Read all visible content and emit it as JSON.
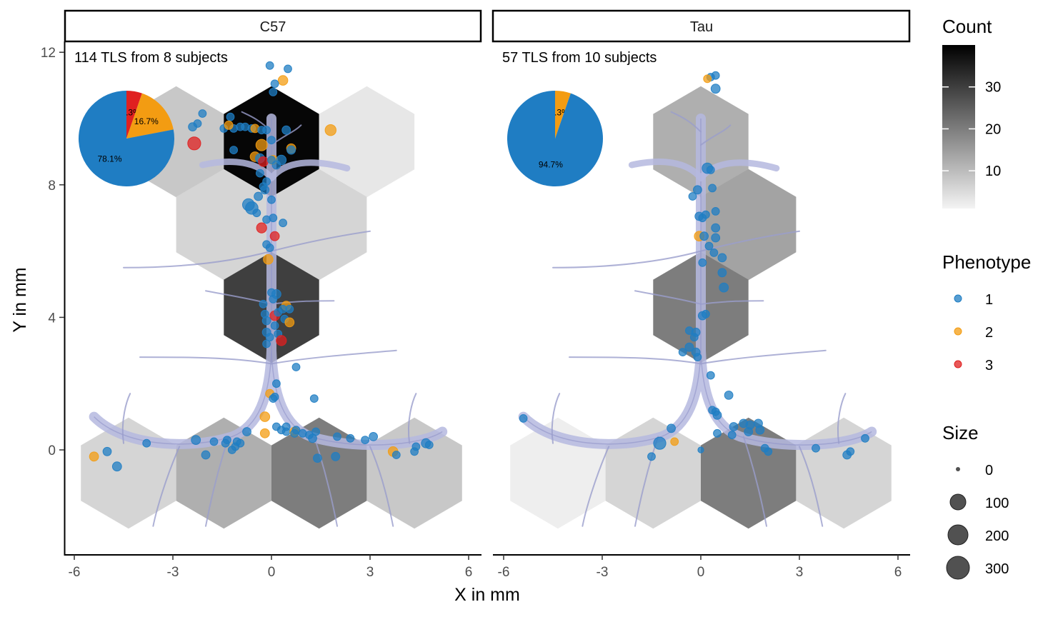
{
  "chart_data": {
    "type": "scatter",
    "xlabel": "X in mm",
    "ylabel": "Y in mm",
    "xlim": [
      -6.3,
      6.3
    ],
    "ylim": [
      -3.2,
      12.4
    ],
    "x_ticks": [
      -6,
      -3,
      0,
      3,
      6
    ],
    "x_tick_labels": [
      "-6",
      "-3",
      "0",
      "3",
      "6"
    ],
    "y_ticks": [
      0,
      4,
      8,
      12
    ],
    "y_tick_labels": [
      "0",
      "4",
      "8",
      "12"
    ],
    "grid": false,
    "panels": [
      {
        "label": "C57",
        "annotation": "114 TLS from 8 subjects",
        "hex_counts": [
          {
            "cx": -2.9,
            "cy": 9.3,
            "count": 8
          },
          {
            "cx": 0.0,
            "cy": 9.3,
            "count": 39
          },
          {
            "cx": 2.9,
            "cy": 9.3,
            "count": 3
          },
          {
            "cx": -1.45,
            "cy": 6.8,
            "count": 6
          },
          {
            "cx": 1.45,
            "cy": 6.8,
            "count": 6
          },
          {
            "cx": 0.0,
            "cy": 4.3,
            "count": 30
          },
          {
            "cx": -4.35,
            "cy": -0.7,
            "count": 6
          },
          {
            "cx": -1.45,
            "cy": -0.7,
            "count": 12
          },
          {
            "cx": 1.45,
            "cy": -0.7,
            "count": 20
          },
          {
            "cx": 4.35,
            "cy": -0.7,
            "count": 8
          }
        ],
        "pie": {
          "slices": [
            {
              "phenotype": "1",
              "pct": 78.1,
              "label": "78.1%"
            },
            {
              "phenotype": "2",
              "pct": 16.7,
              "label": "16.7%"
            },
            {
              "phenotype": "3",
              "pct": 5.3,
              "label": "5.3%"
            }
          ]
        },
        "points": [
          [
            -0.05,
            11.6,
            1,
            10
          ],
          [
            0.5,
            11.5,
            1,
            10
          ],
          [
            0.35,
            11.15,
            2,
            25
          ],
          [
            0.1,
            11.05,
            1,
            10
          ],
          [
            0.05,
            10.8,
            1,
            10
          ],
          [
            -2.1,
            10.15,
            1,
            10
          ],
          [
            -2.25,
            9.85,
            1,
            10
          ],
          [
            -2.4,
            9.75,
            1,
            15
          ],
          [
            -1.25,
            10.05,
            1,
            10
          ],
          [
            -1.45,
            9.7,
            1,
            10
          ],
          [
            -1.15,
            9.7,
            1,
            10
          ],
          [
            -1.3,
            9.8,
            2,
            15
          ],
          [
            -0.8,
            9.75,
            1,
            10
          ],
          [
            -0.6,
            9.7,
            1,
            10
          ],
          [
            -0.5,
            9.7,
            2,
            15
          ],
          [
            -0.95,
            9.75,
            1,
            10
          ],
          [
            -0.3,
            9.65,
            1,
            10
          ],
          [
            0.45,
            9.65,
            1,
            15
          ],
          [
            1.8,
            9.65,
            2,
            40
          ],
          [
            -2.35,
            9.25,
            3,
            65
          ],
          [
            -1.15,
            9.05,
            1,
            10
          ],
          [
            -0.3,
            9.2,
            2,
            45
          ],
          [
            -0.5,
            8.85,
            2,
            25
          ],
          [
            -0.35,
            8.8,
            1,
            20
          ],
          [
            -0.25,
            8.7,
            3,
            25
          ],
          [
            0.05,
            8.75,
            2,
            20
          ],
          [
            0.3,
            8.75,
            1,
            25
          ],
          [
            0.6,
            9.1,
            2,
            20
          ],
          [
            0.6,
            9.05,
            1,
            15
          ],
          [
            0.0,
            8.75,
            1,
            10
          ],
          [
            0.15,
            8.6,
            1,
            15
          ],
          [
            -0.35,
            8.35,
            1,
            10
          ],
          [
            -0.15,
            8.1,
            1,
            10
          ],
          [
            -0.2,
            7.85,
            1,
            15
          ],
          [
            -0.4,
            7.65,
            1,
            15
          ],
          [
            0.0,
            7.55,
            1,
            10
          ],
          [
            -0.7,
            7.4,
            1,
            50
          ],
          [
            -0.6,
            7.3,
            1,
            60
          ],
          [
            -0.45,
            7.15,
            1,
            10
          ],
          [
            0.05,
            7.0,
            1,
            10
          ],
          [
            -0.15,
            6.95,
            1,
            10
          ],
          [
            -0.3,
            6.7,
            3,
            30
          ],
          [
            0.1,
            6.45,
            3,
            20
          ],
          [
            -0.15,
            6.2,
            1,
            10
          ],
          [
            -0.05,
            6.1,
            1,
            10
          ],
          [
            -0.1,
            5.75,
            2,
            25
          ],
          [
            0.0,
            4.75,
            1,
            10
          ],
          [
            0.15,
            4.7,
            1,
            20
          ],
          [
            0.05,
            4.55,
            1,
            10
          ],
          [
            -0.25,
            4.4,
            1,
            10
          ],
          [
            0.45,
            4.35,
            2,
            20
          ],
          [
            0.55,
            4.25,
            1,
            10
          ],
          [
            0.35,
            4.25,
            1,
            10
          ],
          [
            0.1,
            4.05,
            3,
            25
          ],
          [
            0.2,
            4.15,
            1,
            10
          ],
          [
            -0.2,
            4.1,
            1,
            10
          ],
          [
            0.4,
            3.95,
            1,
            10
          ],
          [
            0.55,
            3.85,
            2,
            20
          ],
          [
            -0.15,
            3.9,
            1,
            15
          ],
          [
            0.1,
            3.75,
            1,
            10
          ],
          [
            0.2,
            3.5,
            1,
            10
          ],
          [
            -0.15,
            3.55,
            1,
            15
          ],
          [
            0.3,
            3.3,
            3,
            30
          ],
          [
            -0.15,
            3.2,
            1,
            10
          ],
          [
            0.75,
            2.5,
            1,
            10
          ],
          [
            0.15,
            2.0,
            1,
            10
          ],
          [
            -0.05,
            1.7,
            2,
            15
          ],
          [
            0.05,
            1.55,
            1,
            10
          ],
          [
            1.3,
            1.55,
            1,
            10
          ],
          [
            -0.2,
            1.0,
            2,
            25
          ],
          [
            -0.75,
            0.55,
            1,
            15
          ],
          [
            -0.2,
            0.5,
            2,
            20
          ],
          [
            0.15,
            0.7,
            1,
            10
          ],
          [
            0.3,
            0.6,
            1,
            10
          ],
          [
            0.45,
            0.55,
            1,
            10
          ],
          [
            0.7,
            0.55,
            2,
            20
          ],
          [
            0.75,
            0.6,
            1,
            10
          ],
          [
            0.95,
            0.5,
            1,
            10
          ],
          [
            1.15,
            0.45,
            1,
            10
          ],
          [
            1.35,
            0.55,
            1,
            10
          ],
          [
            1.25,
            0.35,
            1,
            15
          ],
          [
            2.0,
            0.4,
            1,
            10
          ],
          [
            2.4,
            0.35,
            1,
            10
          ],
          [
            3.1,
            0.4,
            1,
            15
          ],
          [
            2.85,
            0.3,
            1,
            10
          ],
          [
            -2.3,
            0.3,
            1,
            20
          ],
          [
            -1.75,
            0.25,
            1,
            10
          ],
          [
            -1.35,
            0.3,
            1,
            10
          ],
          [
            -1.4,
            0.2,
            1,
            10
          ],
          [
            -1.05,
            0.25,
            1,
            10
          ],
          [
            -1.1,
            0.1,
            1,
            10
          ],
          [
            -1.2,
            0.0,
            1,
            10
          ],
          [
            -0.95,
            0.2,
            1,
            10
          ],
          [
            -3.8,
            0.2,
            1,
            10
          ],
          [
            -2.0,
            -0.15,
            1,
            15
          ],
          [
            -5.0,
            -0.05,
            1,
            15
          ],
          [
            -5.4,
            -0.2,
            2,
            20
          ],
          [
            -4.7,
            -0.5,
            1,
            20
          ],
          [
            1.4,
            -0.25,
            1,
            15
          ],
          [
            1.95,
            -0.2,
            1,
            15
          ],
          [
            3.7,
            -0.05,
            2,
            25
          ],
          [
            3.8,
            -0.15,
            1,
            10
          ],
          [
            4.4,
            0.1,
            1,
            10
          ],
          [
            4.35,
            -0.05,
            1,
            10
          ],
          [
            4.7,
            0.2,
            1,
            20
          ],
          [
            4.8,
            0.15,
            1,
            10
          ],
          [
            0.7,
            0.5,
            1,
            10
          ],
          [
            0.45,
            0.7,
            1,
            10
          ],
          [
            0.1,
            1.6,
            1,
            10
          ],
          [
            -0.05,
            3.4,
            1,
            10
          ],
          [
            0.35,
            6.85,
            1,
            10
          ],
          [
            -0.25,
            7.95,
            1,
            10
          ],
          [
            0.0,
            9.35,
            1,
            10
          ],
          [
            -0.15,
            9.65,
            1,
            10
          ]
        ]
      },
      {
        "label": "Tau",
        "annotation": "57 TLS from 10 subjects",
        "hex_counts": [
          {
            "cx": 0.0,
            "cy": 9.3,
            "count": 12
          },
          {
            "cx": 1.45,
            "cy": 6.8,
            "count": 14
          },
          {
            "cx": 0.0,
            "cy": 4.3,
            "count": 20
          },
          {
            "cx": -4.35,
            "cy": -0.7,
            "count": 2
          },
          {
            "cx": -1.45,
            "cy": -0.7,
            "count": 6
          },
          {
            "cx": 1.45,
            "cy": -0.7,
            "count": 20
          },
          {
            "cx": 4.35,
            "cy": -0.7,
            "count": 6
          }
        ],
        "pie": {
          "slices": [
            {
              "phenotype": "1",
              "pct": 94.7,
              "label": "94.7%"
            },
            {
              "phenotype": "2",
              "pct": 5.3,
              "label": "5.3%"
            }
          ]
        },
        "points": [
          [
            0.45,
            11.3,
            1,
            10
          ],
          [
            0.3,
            11.25,
            1,
            10
          ],
          [
            0.2,
            11.2,
            2,
            10
          ],
          [
            0.45,
            10.9,
            1,
            20
          ],
          [
            0.2,
            8.5,
            1,
            35
          ],
          [
            -0.1,
            7.85,
            1,
            15
          ],
          [
            0.35,
            7.9,
            1,
            10
          ],
          [
            -0.25,
            7.65,
            1,
            10
          ],
          [
            -0.05,
            7.05,
            1,
            15
          ],
          [
            0.15,
            7.1,
            1,
            10
          ],
          [
            0.45,
            7.2,
            1,
            10
          ],
          [
            0.05,
            7.0,
            1,
            10
          ],
          [
            0.45,
            6.7,
            1,
            15
          ],
          [
            -0.05,
            6.45,
            2,
            25
          ],
          [
            0.1,
            6.45,
            1,
            15
          ],
          [
            0.45,
            6.4,
            1,
            15
          ],
          [
            0.25,
            6.15,
            1,
            10
          ],
          [
            0.4,
            5.95,
            1,
            10
          ],
          [
            0.05,
            5.65,
            1,
            10
          ],
          [
            0.65,
            5.8,
            1,
            15
          ],
          [
            0.65,
            5.35,
            1,
            15
          ],
          [
            0.7,
            4.9,
            1,
            20
          ],
          [
            0.05,
            4.05,
            1,
            15
          ],
          [
            -0.35,
            3.6,
            1,
            10
          ],
          [
            -0.15,
            3.55,
            1,
            15
          ],
          [
            -0.35,
            3.1,
            1,
            15
          ],
          [
            -0.55,
            2.95,
            1,
            10
          ],
          [
            -0.15,
            2.95,
            1,
            15
          ],
          [
            -0.1,
            2.8,
            1,
            10
          ],
          [
            0.3,
            2.25,
            1,
            10
          ],
          [
            0.85,
            1.65,
            1,
            15
          ],
          [
            0.35,
            1.2,
            1,
            10
          ],
          [
            0.45,
            1.15,
            1,
            10
          ],
          [
            0.5,
            1.05,
            1,
            15
          ],
          [
            -5.4,
            0.95,
            1,
            10
          ],
          [
            -0.9,
            0.65,
            1,
            15
          ],
          [
            1.0,
            0.7,
            1,
            15
          ],
          [
            1.3,
            0.8,
            1,
            15
          ],
          [
            1.5,
            0.75,
            1,
            15
          ],
          [
            1.75,
            0.8,
            1,
            15
          ],
          [
            1.8,
            0.6,
            1,
            15
          ],
          [
            1.45,
            0.55,
            1,
            15
          ],
          [
            0.5,
            0.5,
            1,
            10
          ],
          [
            -1.25,
            0.2,
            1,
            55
          ],
          [
            -0.8,
            0.25,
            2,
            10
          ],
          [
            0.0,
            0.0,
            1,
            2
          ],
          [
            -1.5,
            -0.2,
            1,
            10
          ],
          [
            1.95,
            0.05,
            1,
            10
          ],
          [
            2.05,
            -0.05,
            1,
            10
          ],
          [
            3.5,
            0.05,
            1,
            10
          ],
          [
            4.45,
            -0.15,
            1,
            15
          ],
          [
            4.55,
            -0.05,
            1,
            10
          ],
          [
            5.0,
            0.35,
            1,
            10
          ],
          [
            0.95,
            0.45,
            1,
            10
          ],
          [
            0.15,
            4.1,
            1,
            10
          ],
          [
            0.3,
            8.45,
            1,
            10
          ],
          [
            -0.2,
            3.4,
            1,
            10
          ]
        ]
      }
    ],
    "legends": {
      "count": {
        "title": "Count",
        "min": 1,
        "max": 40,
        "breaks": [
          10,
          20,
          30
        ],
        "labels": [
          "10",
          "20",
          "30"
        ]
      },
      "phenotype": {
        "title": "Phenotype",
        "items": [
          {
            "label": "1",
            "color": "#1f7dc3"
          },
          {
            "label": "2",
            "color": "#f39c12"
          },
          {
            "label": "3",
            "color": "#e02020"
          }
        ]
      },
      "size": {
        "title": "Size",
        "items": [
          {
            "label": "0",
            "value": 0
          },
          {
            "label": "100",
            "value": 100
          },
          {
            "label": "200",
            "value": 200
          },
          {
            "label": "300",
            "value": 300
          }
        ]
      }
    },
    "colors": {
      "phenotype_1": "#1f7dc3",
      "phenotype_2": "#f39c12",
      "phenotype_3": "#e02020",
      "vessel": "#b5b8df"
    }
  }
}
